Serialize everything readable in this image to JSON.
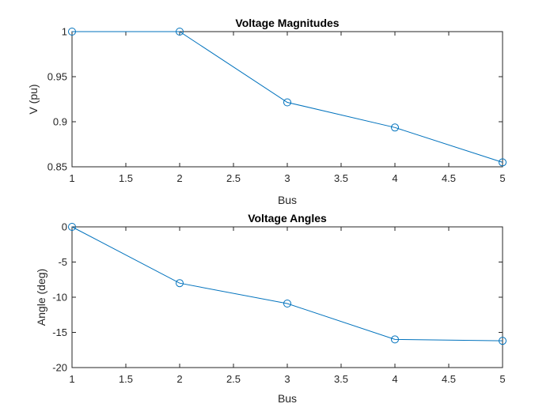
{
  "chart_data": [
    {
      "type": "line",
      "title": "Voltage Magnitudes",
      "xlabel": "Bus",
      "ylabel": "V (pu)",
      "x": [
        1,
        2,
        3,
        4,
        5
      ],
      "xlim": [
        1,
        5
      ],
      "ylim": [
        0.85,
        1
      ],
      "xticks": [
        1,
        1.5,
        2,
        2.5,
        3,
        3.5,
        4,
        4.5,
        5
      ],
      "xtick_labels": [
        "1",
        "1.5",
        "2",
        "2.5",
        "3",
        "3.5",
        "4",
        "4.5",
        "5"
      ],
      "yticks": [
        0.85,
        0.9,
        0.95,
        1
      ],
      "ytick_labels": [
        "0.85",
        "0.9",
        "0.95",
        "1"
      ],
      "grid": false,
      "marker": "circle",
      "color": "#0072bd",
      "series": [
        {
          "values": [
            1.0,
            1.0,
            0.9215,
            0.8936,
            0.8549
          ]
        }
      ]
    },
    {
      "type": "line",
      "title": "Voltage Angles",
      "xlabel": "Bus",
      "ylabel": "Angle (deg)",
      "x": [
        1,
        2,
        3,
        4,
        5
      ],
      "xlim": [
        1,
        5
      ],
      "ylim": [
        -20,
        0
      ],
      "xticks": [
        1,
        1.5,
        2,
        2.5,
        3,
        3.5,
        4,
        4.5,
        5
      ],
      "xtick_labels": [
        "1",
        "1.5",
        "2",
        "2.5",
        "3",
        "3.5",
        "4",
        "4.5",
        "5"
      ],
      "yticks": [
        -20,
        -15,
        -10,
        -5,
        0
      ],
      "ytick_labels": [
        "-20",
        "-15",
        "-10",
        "-5",
        "0"
      ],
      "grid": false,
      "marker": "circle",
      "color": "#0072bd",
      "series": [
        {
          "values": [
            0,
            -8.0,
            -10.9,
            -16.0,
            -16.2
          ]
        }
      ]
    }
  ]
}
